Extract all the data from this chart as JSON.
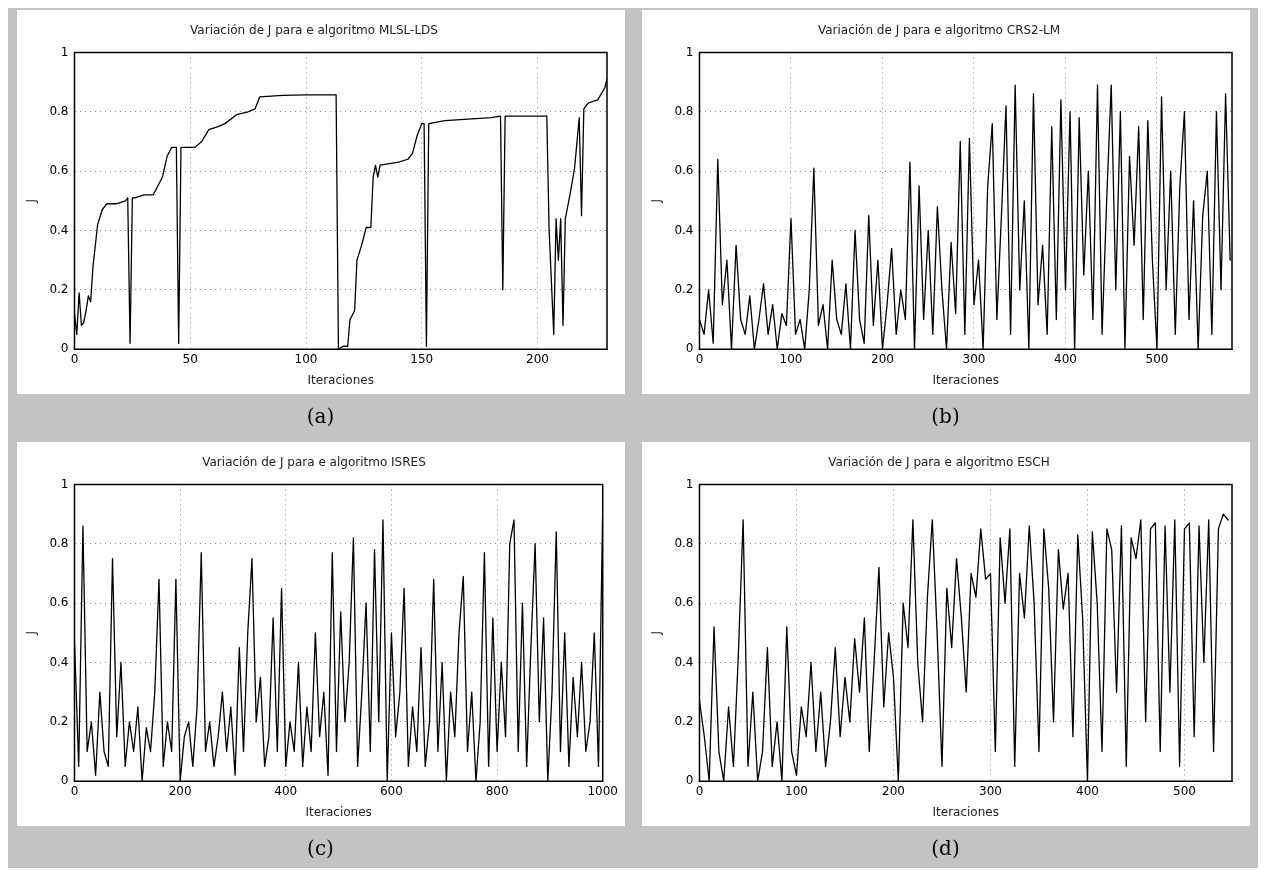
{
  "chart_data": [
    {
      "type": "line",
      "title": "Variación de J para e algoritmo MLSL-LDS",
      "xlabel": "Iteraciones",
      "ylabel": "J",
      "xlim": [
        0,
        230
      ],
      "xticks": [
        0,
        50,
        100,
        150,
        200
      ],
      "ylim": [
        0,
        1
      ],
      "yticks": [
        0,
        0.2,
        0.4,
        0.6,
        0.8,
        1
      ],
      "grid": true,
      "marker": "none",
      "annotations": [
        "(a)"
      ],
      "series": [
        {
          "color": "#000000",
          "x": [
            0,
            1,
            2,
            3,
            4,
            5,
            6,
            7,
            8,
            10,
            12,
            14,
            18,
            22,
            23,
            24,
            25,
            26,
            30,
            34,
            36,
            38,
            40,
            42,
            44,
            45,
            46,
            52,
            55,
            58,
            62,
            65,
            70,
            75,
            78,
            80,
            90,
            100,
            110,
            113,
            114,
            116,
            118,
            119,
            121,
            122,
            124,
            126,
            128,
            129,
            130,
            131,
            132,
            136,
            140,
            144,
            146,
            148,
            150,
            151,
            152,
            153,
            160,
            170,
            180,
            184,
            185,
            186,
            190,
            204,
            205,
            207,
            208,
            209,
            210,
            211,
            212,
            214,
            216,
            218,
            219,
            220,
            222,
            226,
            229,
            230
          ],
          "values": [
            0.12,
            0.05,
            0.19,
            0.08,
            0.09,
            0.13,
            0.18,
            0.16,
            0.28,
            0.42,
            0.47,
            0.49,
            0.49,
            0.5,
            0.51,
            0.02,
            0.51,
            0.51,
            0.52,
            0.52,
            0.55,
            0.58,
            0.65,
            0.68,
            0.68,
            0.02,
            0.68,
            0.68,
            0.7,
            0.74,
            0.75,
            0.76,
            0.79,
            0.8,
            0.81,
            0.85,
            0.855,
            0.857,
            0.857,
            0.857,
            0,
            0.01,
            0.01,
            0.1,
            0.13,
            0.3,
            0.35,
            0.41,
            0.41,
            0.58,
            0.62,
            0.58,
            0.62,
            0.625,
            0.63,
            0.64,
            0.66,
            0.72,
            0.76,
            0.76,
            0.01,
            0.76,
            0.77,
            0.775,
            0.78,
            0.785,
            0.2,
            0.785,
            0.785,
            0.785,
            0.4,
            0.05,
            0.44,
            0.3,
            0.44,
            0.08,
            0.44,
            0.52,
            0.61,
            0.78,
            0.45,
            0.81,
            0.83,
            0.84,
            0.88,
            0.91
          ]
        }
      ]
    },
    {
      "type": "line",
      "title": "Variación de J para e algoritmo CRS2-LM",
      "xlabel": "Iteraciones",
      "ylabel": "J",
      "xlim": [
        0,
        582
      ],
      "xticks": [
        0,
        100,
        200,
        300,
        400,
        500
      ],
      "ylim": [
        0,
        1
      ],
      "yticks": [
        0,
        0.2,
        0.4,
        0.6,
        0.8,
        1
      ],
      "grid": true,
      "marker": "none",
      "annotations": [
        "(b)"
      ],
      "series": [
        {
          "color": "#000000",
          "x": [
            0,
            5,
            10,
            15,
            20,
            25,
            30,
            35,
            40,
            45,
            50,
            55,
            60,
            65,
            70,
            75,
            80,
            85,
            90,
            95,
            100,
            105,
            110,
            115,
            120,
            125,
            130,
            135,
            140,
            145,
            150,
            155,
            160,
            165,
            170,
            175,
            180,
            185,
            190,
            195,
            200,
            205,
            210,
            215,
            220,
            225,
            230,
            235,
            240,
            245,
            250,
            255,
            260,
            265,
            270,
            275,
            280,
            285,
            290,
            295,
            300,
            305,
            310,
            315,
            320,
            325,
            330,
            335,
            340,
            345,
            350,
            355,
            360,
            365,
            370,
            375,
            380,
            385,
            390,
            395,
            400,
            405,
            410,
            415,
            420,
            425,
            430,
            435,
            440,
            445,
            450,
            455,
            460,
            465,
            470,
            475,
            480,
            485,
            490,
            495,
            500,
            505,
            510,
            515,
            520,
            525,
            530,
            535,
            540,
            545,
            550,
            555,
            560,
            565,
            570,
            575,
            580
          ],
          "values": [
            0.1,
            0.05,
            0.2,
            0.02,
            0.64,
            0.15,
            0.3,
            0,
            0.35,
            0.1,
            0.05,
            0.18,
            0,
            0.1,
            0.22,
            0.05,
            0.15,
            0,
            0.12,
            0.08,
            0.44,
            0.05,
            0.1,
            0,
            0.2,
            0.61,
            0.08,
            0.15,
            0,
            0.3,
            0.1,
            0.05,
            0.22,
            0,
            0.4,
            0.1,
            0.02,
            0.45,
            0.08,
            0.3,
            0,
            0.15,
            0.34,
            0.05,
            0.2,
            0.1,
            0.63,
            0,
            0.55,
            0.1,
            0.4,
            0.05,
            0.48,
            0.2,
            0,
            0.36,
            0.12,
            0.7,
            0.05,
            0.71,
            0.15,
            0.3,
            0,
            0.55,
            0.76,
            0.1,
            0.45,
            0.82,
            0.05,
            0.89,
            0.2,
            0.5,
            0,
            0.86,
            0.15,
            0.35,
            0.05,
            0.75,
            0.1,
            0.84,
            0.2,
            0.8,
            0,
            0.78,
            0.25,
            0.6,
            0.1,
            0.89,
            0.05,
            0.5,
            0.89,
            0.2,
            0.8,
            0,
            0.65,
            0.35,
            0.75,
            0.1,
            0.77,
            0.3,
            0,
            0.85,
            0.2,
            0.6,
            0.05,
            0.55,
            0.8,
            0.1,
            0.5,
            0,
            0.45,
            0.6,
            0.05,
            0.8,
            0.2,
            0.86,
            0.3
          ]
        }
      ]
    },
    {
      "type": "line",
      "title": "Variación de J para e algoritmo ISRES",
      "xlabel": "Iteraciones",
      "ylabel": "J",
      "xlim": [
        0,
        1000
      ],
      "xticks": [
        0,
        200,
        400,
        600,
        800,
        1000
      ],
      "ylim": [
        0,
        1
      ],
      "yticks": [
        0,
        0.2,
        0.4,
        0.6,
        0.8,
        1
      ],
      "grid": true,
      "marker": "none",
      "annotations": [
        "(c)"
      ],
      "series": [
        {
          "color": "#000000",
          "x": [
            0,
            8,
            16,
            24,
            32,
            40,
            48,
            56,
            64,
            72,
            80,
            88,
            96,
            104,
            112,
            120,
            128,
            136,
            144,
            152,
            160,
            168,
            176,
            184,
            192,
            200,
            208,
            216,
            224,
            232,
            240,
            248,
            256,
            264,
            272,
            280,
            288,
            296,
            304,
            312,
            320,
            328,
            336,
            344,
            352,
            360,
            368,
            376,
            384,
            392,
            400,
            408,
            416,
            424,
            432,
            440,
            448,
            456,
            464,
            472,
            480,
            488,
            496,
            504,
            512,
            520,
            528,
            536,
            544,
            552,
            560,
            568,
            576,
            584,
            592,
            600,
            608,
            616,
            624,
            632,
            640,
            648,
            656,
            664,
            672,
            680,
            688,
            696,
            704,
            712,
            720,
            728,
            736,
            744,
            752,
            760,
            768,
            776,
            784,
            792,
            800,
            808,
            816,
            824,
            832,
            840,
            848,
            856,
            864,
            872,
            880,
            888,
            896,
            904,
            912,
            920,
            928,
            936,
            944,
            952,
            960,
            968,
            976,
            984,
            992,
            1000
          ],
          "values": [
            0.47,
            0.05,
            0.86,
            0.1,
            0.2,
            0.02,
            0.3,
            0.1,
            0.05,
            0.75,
            0.15,
            0.4,
            0.05,
            0.2,
            0.1,
            0.25,
            0,
            0.18,
            0.1,
            0.3,
            0.68,
            0.05,
            0.2,
            0.1,
            0.68,
            0,
            0.15,
            0.2,
            0.05,
            0.25,
            0.77,
            0.1,
            0.2,
            0.05,
            0.15,
            0.3,
            0.1,
            0.25,
            0.02,
            0.45,
            0.1,
            0.5,
            0.75,
            0.2,
            0.35,
            0.05,
            0.15,
            0.55,
            0.1,
            0.65,
            0.05,
            0.2,
            0.1,
            0.4,
            0.05,
            0.25,
            0.1,
            0.5,
            0.15,
            0.3,
            0.02,
            0.77,
            0.1,
            0.57,
            0.2,
            0.4,
            0.82,
            0.05,
            0.3,
            0.6,
            0.1,
            0.78,
            0.2,
            0.88,
            0,
            0.5,
            0.15,
            0.3,
            0.65,
            0.05,
            0.25,
            0.1,
            0.45,
            0.05,
            0.2,
            0.68,
            0.1,
            0.4,
            0,
            0.3,
            0.15,
            0.5,
            0.69,
            0.1,
            0.3,
            0,
            0.2,
            0.77,
            0.05,
            0.55,
            0.1,
            0.4,
            0.15,
            0.8,
            0.88,
            0.1,
            0.6,
            0.05,
            0.45,
            0.8,
            0.2,
            0.55,
            0,
            0.3,
            0.84,
            0.1,
            0.5,
            0.05,
            0.35,
            0.15,
            0.4,
            0.1,
            0.2,
            0.5,
            0.05,
            0.92
          ]
        }
      ]
    },
    {
      "type": "line",
      "title": "Variación de J para e algoritmo ESCH",
      "xlabel": "Iteraciones",
      "ylabel": "J",
      "xlim": [
        0,
        549
      ],
      "xticks": [
        0,
        100,
        200,
        300,
        400,
        500
      ],
      "ylim": [
        0,
        1
      ],
      "yticks": [
        0,
        0.2,
        0.4,
        0.6,
        0.8,
        1
      ],
      "grid": true,
      "marker": "none",
      "annotations": [
        "(d)"
      ],
      "series": [
        {
          "color": "#000000",
          "x": [
            0,
            5,
            10,
            15,
            20,
            25,
            30,
            35,
            40,
            45,
            50,
            55,
            60,
            65,
            70,
            75,
            80,
            85,
            90,
            95,
            100,
            105,
            110,
            115,
            120,
            125,
            130,
            135,
            140,
            145,
            150,
            155,
            160,
            165,
            170,
            175,
            180,
            185,
            190,
            195,
            200,
            205,
            210,
            215,
            220,
            225,
            230,
            235,
            240,
            245,
            250,
            255,
            260,
            265,
            270,
            275,
            280,
            285,
            290,
            295,
            300,
            305,
            310,
            315,
            320,
            325,
            330,
            335,
            340,
            345,
            350,
            355,
            360,
            365,
            370,
            375,
            380,
            385,
            390,
            395,
            400,
            405,
            410,
            415,
            420,
            425,
            430,
            435,
            440,
            445,
            450,
            455,
            460,
            465,
            470,
            475,
            480,
            485,
            490,
            495,
            500,
            505,
            510,
            515,
            520,
            525,
            530,
            535,
            540,
            545
          ],
          "values": [
            0.27,
            0.15,
            0,
            0.52,
            0.1,
            0,
            0.25,
            0.05,
            0.42,
            0.88,
            0.05,
            0.3,
            0,
            0.1,
            0.45,
            0.05,
            0.2,
            0,
            0.52,
            0.1,
            0.02,
            0.25,
            0.15,
            0.4,
            0.1,
            0.3,
            0.05,
            0.2,
            0.45,
            0.15,
            0.35,
            0.2,
            0.48,
            0.3,
            0.55,
            0.1,
            0.4,
            0.72,
            0.25,
            0.5,
            0.35,
            0,
            0.6,
            0.45,
            0.88,
            0.4,
            0.2,
            0.62,
            0.88,
            0.5,
            0.05,
            0.65,
            0.45,
            0.75,
            0.55,
            0.3,
            0.7,
            0.62,
            0.85,
            0.68,
            0.7,
            0.1,
            0.82,
            0.6,
            0.85,
            0.05,
            0.7,
            0.55,
            0.86,
            0.6,
            0.1,
            0.85,
            0.65,
            0.2,
            0.78,
            0.58,
            0.7,
            0.15,
            0.83,
            0.55,
            0,
            0.84,
            0.6,
            0.1,
            0.85,
            0.78,
            0.3,
            0.86,
            0.05,
            0.82,
            0.75,
            0.88,
            0.2,
            0.85,
            0.87,
            0.1,
            0.86,
            0.3,
            0.88,
            0.05,
            0.85,
            0.87,
            0.15,
            0.86,
            0.4,
            0.88,
            0.1,
            0.85,
            0.9,
            0.88
          ]
        }
      ]
    }
  ]
}
